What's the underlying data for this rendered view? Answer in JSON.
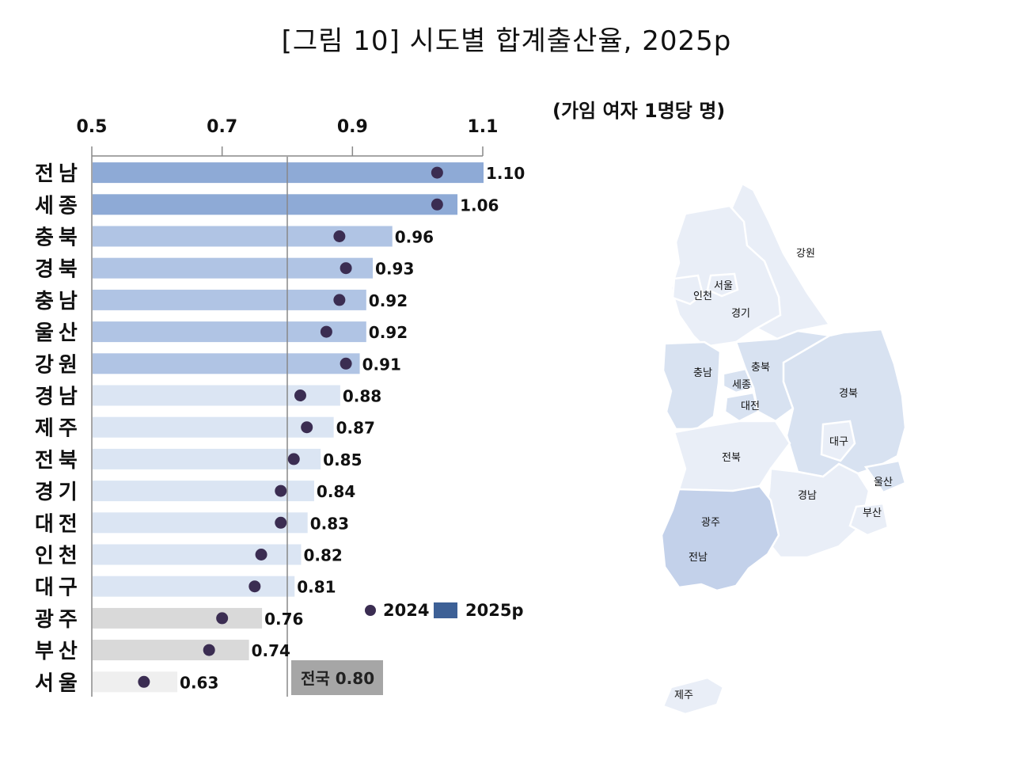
{
  "title": "[그림 10] 시도별 합계출산율, 2025p",
  "unit": "(가임 여자 1명당 명)",
  "colors": {
    "dark": "#8eaad6",
    "light": "#dbe5f3",
    "gray": "#d9d9d9",
    "lightest": "#efefef",
    "dot": "#3b2d52",
    "legend_bar": "#3d6096",
    "national": "#a6a6a6",
    "map_dark": "#c3d1ea",
    "map_mid": "#d8e2f1",
    "map_light": "#e9eef7"
  },
  "legend": {
    "dot_label": "2024",
    "bar_label": "2025p"
  },
  "national_label": "전국 0.80",
  "chart_data": {
    "type": "bar",
    "orientation": "horizontal",
    "xlim": [
      0.5,
      1.1
    ],
    "xticks": [
      "0.5",
      "0.7",
      "0.9",
      "1.1"
    ],
    "reference_line": 0.8,
    "categories": [
      "전남",
      "세종",
      "충북",
      "경북",
      "충남",
      "울산",
      "강원",
      "경남",
      "제주",
      "전북",
      "경기",
      "대전",
      "인천",
      "대구",
      "광주",
      "부산",
      "서울"
    ],
    "series": [
      {
        "name": "2025p",
        "type": "bar",
        "values": [
          1.1,
          1.06,
          0.96,
          0.93,
          0.92,
          0.92,
          0.91,
          0.88,
          0.87,
          0.85,
          0.84,
          0.83,
          0.82,
          0.81,
          0.76,
          0.74,
          0.63
        ]
      },
      {
        "name": "2024",
        "type": "dot",
        "values": [
          1.03,
          1.03,
          0.88,
          0.89,
          0.88,
          0.86,
          0.89,
          0.82,
          0.83,
          0.81,
          0.79,
          0.79,
          0.76,
          0.75,
          0.7,
          0.68,
          0.58
        ]
      }
    ],
    "value_labels": [
      "1.10",
      "1.06",
      "0.96",
      "0.93",
      "0.92",
      "0.92",
      "0.91",
      "0.88",
      "0.87",
      "0.85",
      "0.84",
      "0.83",
      "0.82",
      "0.81",
      "0.76",
      "0.74",
      "0.63"
    ],
    "shade_groups": [
      "dark",
      "dark",
      "medium",
      "medium",
      "medium",
      "medium",
      "medium",
      "light",
      "light",
      "light",
      "light",
      "light",
      "light",
      "light",
      "gray",
      "gray",
      "lightest"
    ]
  },
  "map": {
    "regions": [
      {
        "name": "강원",
        "shade": "light"
      },
      {
        "name": "경기",
        "shade": "light"
      },
      {
        "name": "서울",
        "shade": "light"
      },
      {
        "name": "인천",
        "shade": "light"
      },
      {
        "name": "충남",
        "shade": "mid"
      },
      {
        "name": "충북",
        "shade": "mid"
      },
      {
        "name": "세종",
        "shade": "mid"
      },
      {
        "name": "대전",
        "shade": "mid"
      },
      {
        "name": "경북",
        "shade": "mid"
      },
      {
        "name": "대구",
        "shade": "light"
      },
      {
        "name": "울산",
        "shade": "mid"
      },
      {
        "name": "전북",
        "shade": "light"
      },
      {
        "name": "경남",
        "shade": "light"
      },
      {
        "name": "부산",
        "shade": "light"
      },
      {
        "name": "광주",
        "shade": "light"
      },
      {
        "name": "전남",
        "shade": "dark"
      },
      {
        "name": "제주",
        "shade": "light"
      }
    ]
  }
}
